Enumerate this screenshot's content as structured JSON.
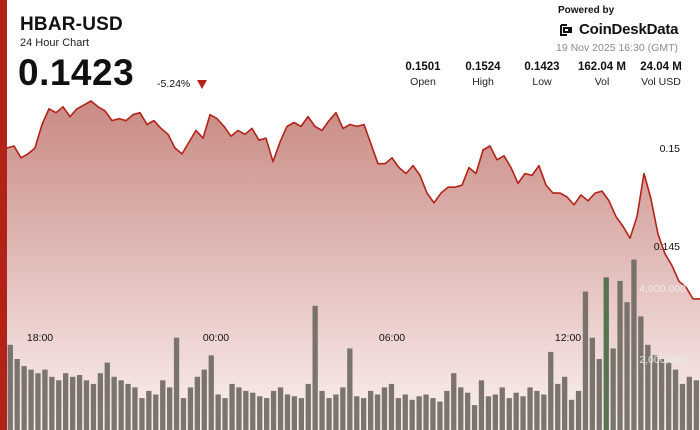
{
  "header": {
    "title": "HBAR-USD",
    "subtitle": "24 Hour Chart",
    "price": "0.1423",
    "change": "-5.24%",
    "powered_by": "Powered by",
    "brand": "CoinDeskData",
    "timestamp": "19 Nov 2025 16:30 (GMT)"
  },
  "stats": [
    {
      "value": "0.1501",
      "label": "Open"
    },
    {
      "value": "0.1524",
      "label": "High"
    },
    {
      "value": "0.1423",
      "label": "Low"
    },
    {
      "value": "162.04 M",
      "label": "Vol"
    },
    {
      "value": "24.04 M",
      "label": "Vol USD"
    }
  ],
  "colors": {
    "accent": "#b32217",
    "area_top": "#c98a84",
    "area_bottom": "#fbf1f0",
    "volume_bar": "#6f6a62",
    "volume_bar_highlight": "#4a6a45"
  },
  "chart_data": {
    "type": "area",
    "x_tick_labels": [
      "18:00",
      "00:00",
      "06:00",
      "12:00"
    ],
    "y_tick_labels": [
      "0.15",
      "0.145"
    ],
    "volume_tick_labels": [
      "4,000,000",
      "2,000,000"
    ],
    "price_series": [
      0.15,
      0.1501,
      0.1495,
      0.1497,
      0.15,
      0.1512,
      0.152,
      0.1518,
      0.1521,
      0.1516,
      0.152,
      0.1522,
      0.1524,
      0.1521,
      0.1519,
      0.1514,
      0.1515,
      0.1514,
      0.1517,
      0.1518,
      0.1512,
      0.1514,
      0.151,
      0.1507,
      0.15,
      0.1497,
      0.1503,
      0.1509,
      0.1505,
      0.1517,
      0.1515,
      0.1511,
      0.1506,
      0.1509,
      0.1507,
      0.151,
      0.1504,
      0.1505,
      0.1493,
      0.1503,
      0.1511,
      0.1513,
      0.1511,
      0.1516,
      0.1511,
      0.1509,
      0.1514,
      0.1518,
      0.151,
      0.1512,
      0.1511,
      0.1512,
      0.1502,
      0.1492,
      0.1492,
      0.1495,
      0.149,
      0.1487,
      0.1491,
      0.1486,
      0.1477,
      0.1472,
      0.1477,
      0.148,
      0.148,
      0.1481,
      0.149,
      0.1487,
      0.1499,
      0.1501,
      0.1494,
      0.1496,
      0.149,
      0.1482,
      0.1487,
      0.1486,
      0.1491,
      0.1481,
      0.1477,
      0.1477,
      0.1475,
      0.1471,
      0.1476,
      0.1473,
      0.1477,
      0.1478,
      0.1473,
      0.1465,
      0.146,
      0.1454,
      0.1465,
      0.1487,
      0.1474,
      0.1456,
      0.1446,
      0.144,
      0.1432,
      0.1429,
      0.1423,
      0.1423
    ],
    "volume_series": [
      2.4,
      2.0,
      1.8,
      1.7,
      1.6,
      1.7,
      1.5,
      1.4,
      1.6,
      1.5,
      1.55,
      1.4,
      1.3,
      1.6,
      1.9,
      1.5,
      1.4,
      1.3,
      1.2,
      0.9,
      1.1,
      1.0,
      1.4,
      1.2,
      2.6,
      0.9,
      1.2,
      1.5,
      1.7,
      2.1,
      1.0,
      0.9,
      1.3,
      1.2,
      1.1,
      1.05,
      0.95,
      0.9,
      1.1,
      1.2,
      1.0,
      0.95,
      0.9,
      1.3,
      3.5,
      1.1,
      0.9,
      1.0,
      1.2,
      2.3,
      0.95,
      0.9,
      1.1,
      1.0,
      1.2,
      1.3,
      0.9,
      1.0,
      0.85,
      0.95,
      1.0,
      0.9,
      0.8,
      1.1,
      1.6,
      1.2,
      1.05,
      0.7,
      1.4,
      0.95,
      1.0,
      1.2,
      0.9,
      1.05,
      0.95,
      1.2,
      1.1,
      1.0,
      2.2,
      1.3,
      1.5,
      0.85,
      1.1,
      3.9,
      2.6,
      2.0,
      4.3,
      2.3,
      4.2,
      3.6,
      4.8,
      3.2,
      2.4,
      2.1,
      2.0,
      1.9,
      1.7,
      1.3,
      1.5,
      1.4
    ],
    "y_axis": {
      "tick_values": [
        0.145,
        0.15
      ]
    },
    "volume_axis": {
      "tick_values": [
        2000000,
        4000000
      ]
    }
  }
}
